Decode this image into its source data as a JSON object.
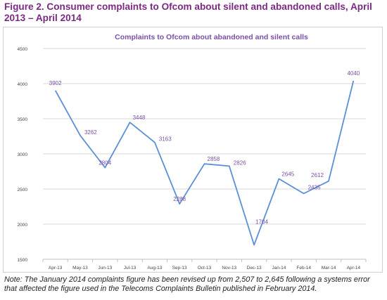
{
  "figure": {
    "title": "Figure 2. Consumer complaints to Ofcom about silent and abandoned calls, April 2013 – April 2014",
    "note": "Note: The January 2014 complaints figure has been revised up from 2,507 to 2,645 following a systems error that affected the figure used in the Telecoms Complaints Bulletin published in February 2014."
  },
  "colors": {
    "title": "#7a2a82",
    "line": "#5b8fd6",
    "label": "#7a4fa6",
    "chart_title": "#7a4fa6",
    "grid": "#d9d9d9"
  },
  "chart_data": {
    "type": "line",
    "title": "Complaints to Ofcom about abandoned and silent calls",
    "xlabel": "",
    "ylabel": "",
    "categories": [
      "Apr-13",
      "May-13",
      "Jun-13",
      "Jul-13",
      "Aug-13",
      "Sep-13",
      "Oct-13",
      "Nov-13",
      "Dec-13",
      "Jan-14",
      "Feb-14",
      "Mar-14",
      "Apr-14"
    ],
    "series": [
      {
        "values": [
          3902,
          3262,
          2804,
          3448,
          3163,
          2288,
          2858,
          2826,
          1704,
          2645,
          2435,
          2612,
          4040
        ]
      }
    ],
    "ylim": [
      1500,
      4500
    ],
    "yticks": [
      1500,
      2000,
      2500,
      3000,
      3500,
      4000,
      4500
    ],
    "grid": true,
    "data_labels": true,
    "legend": "none"
  }
}
